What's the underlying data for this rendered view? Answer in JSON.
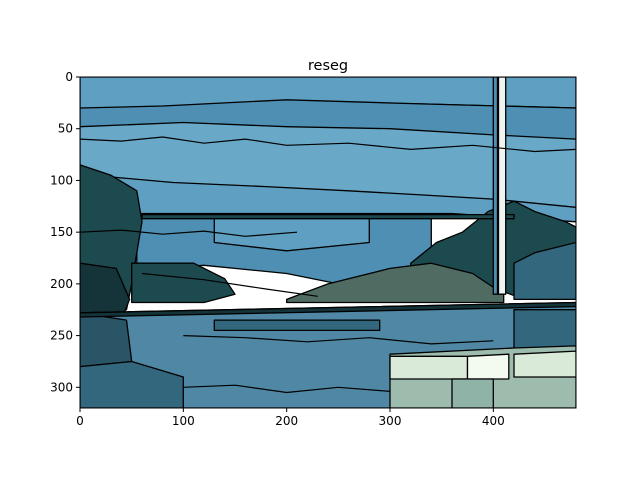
{
  "chart_data": {
    "type": "heatmap",
    "title": "reseg",
    "xlabel": "",
    "ylabel": "",
    "image_size": [
      480,
      320
    ],
    "xlim": [
      0,
      480
    ],
    "ylim": [
      320,
      0
    ],
    "x_ticks": [
      0,
      100,
      200,
      300,
      400
    ],
    "y_ticks": [
      0,
      50,
      100,
      150,
      200,
      250,
      300
    ],
    "grid": false,
    "legend": "none",
    "description_of_content": "segmented image with flat-coloured regions and black boundaries",
    "palette": {
      "sky_light": "#6aa8c8",
      "sky_mid": "#5f9fc2",
      "sky_dark": "#4f8fb3",
      "foliage_dark": "#1d4a4e",
      "foliage_darker": "#14343a",
      "hill": "#4f6b62",
      "water_mid": "#4f87a5",
      "water_dark": "#33677e",
      "water_deep": "#2a5567",
      "dock_light": "#d9ead8",
      "dock_grey": "#9dbcae",
      "boundary": "#000000"
    }
  }
}
